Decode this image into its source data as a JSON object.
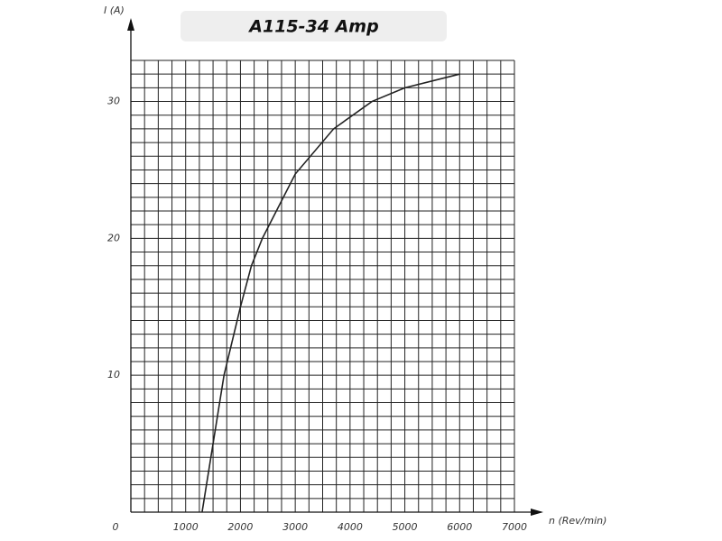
{
  "chart_data": {
    "type": "line",
    "title": "A115-34 Amp",
    "x_label": "n (Rev/min)",
    "y_label": "I (A)",
    "x": [
      1300,
      1500,
      1700,
      2000,
      2200,
      2400,
      3000,
      3700,
      4400,
      5000,
      6000
    ],
    "series": [
      {
        "color": "#222222",
        "values": [
          0,
          5,
          10,
          15,
          18,
          20,
          24.7,
          28,
          30,
          31,
          32
        ]
      }
    ],
    "xlim": [
      0,
      7000
    ],
    "xticks": [
      1000,
      2000,
      3000,
      4000,
      5000,
      6000,
      7000
    ],
    "ylim": [
      0,
      33
    ],
    "yticks": [
      0,
      10,
      20,
      30
    ],
    "grid": true,
    "minor_grid": {
      "x": 250,
      "y": 1
    }
  }
}
